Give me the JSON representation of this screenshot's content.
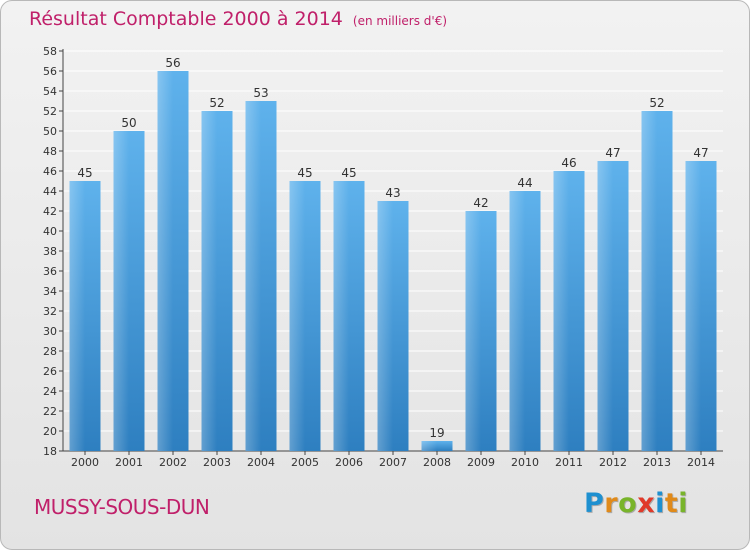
{
  "title": "Résultat Comptable 2000 à 2014",
  "unit_note": "(en milliers d'€)",
  "commune": "MUSSY-SOUS-DUN",
  "logo": {
    "letters": [
      "P",
      "r",
      "o",
      "x",
      "i",
      "t",
      "i"
    ],
    "colors": [
      "#1e90d0",
      "#e08a1a",
      "#78b42a",
      "#e03a2a",
      "#1e90d0",
      "#e08a1a",
      "#78b42a"
    ]
  },
  "colors": {
    "bar": "#4aa3e0",
    "title": "#c0206a",
    "grid": "#ffffff"
  },
  "chart_data": {
    "type": "bar",
    "categories": [
      "2000",
      "2001",
      "2002",
      "2003",
      "2004",
      "2005",
      "2006",
      "2007",
      "2008",
      "2009",
      "2010",
      "2011",
      "2012",
      "2013",
      "2014"
    ],
    "values": [
      45,
      50,
      56,
      52,
      53,
      45,
      45,
      43,
      19,
      42,
      44,
      46,
      47,
      52,
      47
    ],
    "ylim": [
      18,
      58
    ],
    "yticks": [
      18,
      20,
      22,
      24,
      26,
      28,
      30,
      32,
      34,
      36,
      38,
      40,
      42,
      44,
      46,
      48,
      50,
      52,
      54,
      56,
      58
    ],
    "grid": true,
    "xlabel": "",
    "ylabel": ""
  }
}
